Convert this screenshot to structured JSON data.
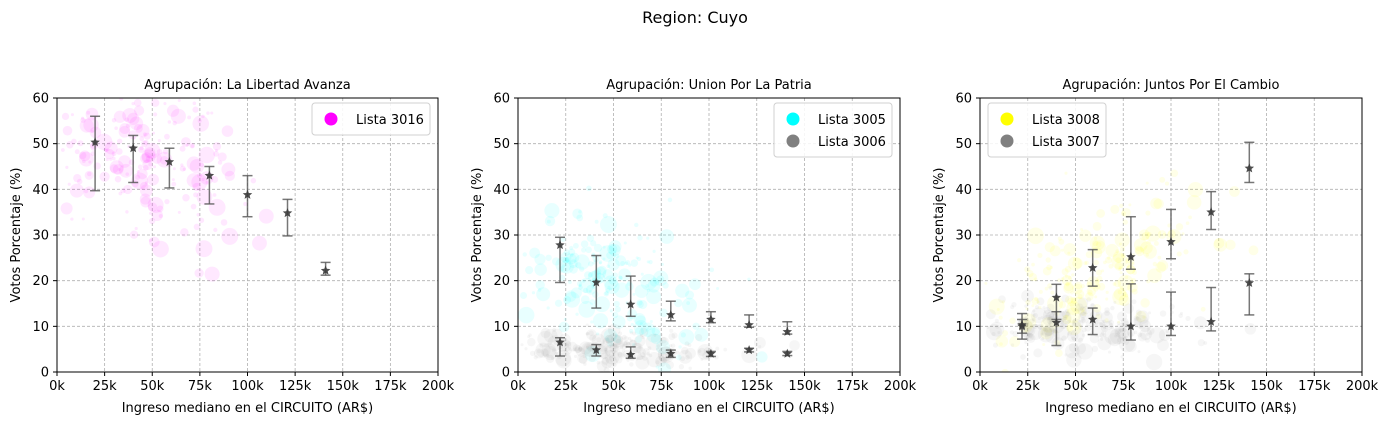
{
  "figure": {
    "suptitle": "Region: Cuyo"
  },
  "chart_data": [
    {
      "type": "scatter",
      "title": "Agrupación: La Libertad Avanza",
      "xlabel": "Ingreso mediano en el CIRCUITO (AR$)",
      "ylabel": "Votos Porcentaje (%)",
      "xlim": [
        0,
        200000
      ],
      "ylim": [
        0,
        60
      ],
      "x_ticks": [
        0,
        25000,
        50000,
        75000,
        100000,
        125000,
        150000,
        175000,
        200000
      ],
      "x_tick_labels": [
        "0k",
        "25k",
        "50k",
        "75k",
        "100k",
        "125k",
        "150k",
        "175k",
        "200k"
      ],
      "y_ticks": [
        0,
        10,
        20,
        30,
        40,
        50,
        60
      ],
      "y_tick_labels": [
        "0",
        "10",
        "20",
        "30",
        "40",
        "50",
        "60"
      ],
      "grid": true,
      "legend_position": "top-right",
      "series": [
        {
          "name": "Lista 3016",
          "color": "#ff00ff",
          "scatter_cloud": {
            "x_center": 45000,
            "y_center": 46,
            "x_spread": 25000,
            "y_spread": 8,
            "slope": -8e-05
          },
          "binned": [
            {
              "x": 20000,
              "y": 50.3,
              "low": 39.7,
              "high": 56.0
            },
            {
              "x": 40000,
              "y": 49.0,
              "low": 41.5,
              "high": 51.8
            },
            {
              "x": 59000,
              "y": 46.0,
              "low": 40.3,
              "high": 49.0
            },
            {
              "x": 80000,
              "y": 43.0,
              "low": 36.8,
              "high": 45.0
            },
            {
              "x": 100000,
              "y": 38.8,
              "low": 34.0,
              "high": 43.0
            },
            {
              "x": 121000,
              "y": 34.8,
              "low": 29.8,
              "high": 37.8
            },
            {
              "x": 141000,
              "y": 22.2,
              "low": 21.2,
              "high": 24.0
            }
          ]
        }
      ]
    },
    {
      "type": "scatter",
      "title": "Agrupación: Union Por La Patria",
      "xlabel": "Ingreso mediano en el CIRCUITO (AR$)",
      "ylabel": "Votos Porcentaje (%)",
      "xlim": [
        0,
        200000
      ],
      "ylim": [
        0,
        60
      ],
      "x_ticks": [
        0,
        25000,
        50000,
        75000,
        100000,
        125000,
        150000,
        175000,
        200000
      ],
      "x_tick_labels": [
        "0k",
        "25k",
        "50k",
        "75k",
        "100k",
        "125k",
        "150k",
        "175k",
        "200k"
      ],
      "y_ticks": [
        0,
        10,
        20,
        30,
        40,
        50,
        60
      ],
      "y_tick_labels": [
        "0",
        "10",
        "20",
        "30",
        "40",
        "50",
        "60"
      ],
      "grid": true,
      "legend_position": "top-right",
      "series": [
        {
          "name": "Lista 3005",
          "color": "#00ffff",
          "scatter_cloud": {
            "x_center": 45000,
            "y_center": 20,
            "x_spread": 25000,
            "y_spread": 7,
            "slope": -0.00015
          },
          "binned": [
            {
              "x": 22000,
              "y": 27.8,
              "low": 19.6,
              "high": 29.5
            },
            {
              "x": 41000,
              "y": 19.6,
              "low": 14.0,
              "high": 25.5
            },
            {
              "x": 59000,
              "y": 14.8,
              "low": 12.2,
              "high": 21.0
            },
            {
              "x": 80000,
              "y": 12.5,
              "low": 11.2,
              "high": 15.5
            },
            {
              "x": 101000,
              "y": 11.5,
              "low": 10.8,
              "high": 13.2
            },
            {
              "x": 121000,
              "y": 10.3,
              "low": 9.8,
              "high": 12.5
            },
            {
              "x": 141000,
              "y": 8.8,
              "low": 8.3,
              "high": 11.0
            }
          ]
        },
        {
          "name": "Lista 3006",
          "color": "#808080",
          "scatter_cloud": {
            "x_center": 50000,
            "y_center": 5,
            "x_spread": 28000,
            "y_spread": 2,
            "slope": 0
          },
          "binned": [
            {
              "x": 22000,
              "y": 6.5,
              "low": 3.5,
              "high": 7.5
            },
            {
              "x": 41000,
              "y": 4.8,
              "low": 3.5,
              "high": 6.0
            },
            {
              "x": 59000,
              "y": 3.8,
              "low": 3.0,
              "high": 5.5
            },
            {
              "x": 80000,
              "y": 4.0,
              "low": 3.2,
              "high": 4.8
            },
            {
              "x": 101000,
              "y": 4.0,
              "low": 3.4,
              "high": 4.5
            },
            {
              "x": 121000,
              "y": 4.8,
              "low": 4.4,
              "high": 5.2
            },
            {
              "x": 141000,
              "y": 4.0,
              "low": 3.6,
              "high": 4.5
            }
          ]
        }
      ]
    },
    {
      "type": "scatter",
      "title": "Agrupación: Juntos Por El Cambio",
      "xlabel": "Ingreso mediano en el CIRCUITO (AR$)",
      "ylabel": "Votos Porcentaje (%)",
      "xlim": [
        0,
        200000
      ],
      "ylim": [
        0,
        60
      ],
      "x_ticks": [
        0,
        25000,
        50000,
        75000,
        100000,
        125000,
        150000,
        175000,
        200000
      ],
      "x_tick_labels": [
        "0k",
        "25k",
        "50k",
        "75k",
        "100k",
        "125k",
        "150k",
        "175k",
        "200k"
      ],
      "y_ticks": [
        0,
        10,
        20,
        30,
        40,
        50,
        60
      ],
      "y_tick_labels": [
        "0",
        "10",
        "20",
        "30",
        "40",
        "50",
        "60"
      ],
      "grid": true,
      "legend_position": "top-left",
      "series": [
        {
          "name": "Lista 3008",
          "color": "#ffff00",
          "scatter_cloud": {
            "x_center": 60000,
            "y_center": 22,
            "x_spread": 28000,
            "y_spread": 7,
            "slope": 0.00018
          },
          "binned": [
            {
              "x": 22000,
              "y": 10.0,
              "low": 8.5,
              "high": 12.8
            },
            {
              "x": 40000,
              "y": 16.3,
              "low": 11.5,
              "high": 19.2
            },
            {
              "x": 59000,
              "y": 22.8,
              "low": 18.8,
              "high": 26.8
            },
            {
              "x": 79000,
              "y": 25.2,
              "low": 22.5,
              "high": 34.0
            },
            {
              "x": 100000,
              "y": 28.5,
              "low": 24.8,
              "high": 35.6
            },
            {
              "x": 121000,
              "y": 35.0,
              "low": 31.2,
              "high": 39.5
            },
            {
              "x": 141000,
              "y": 44.6,
              "low": 41.5,
              "high": 50.3
            }
          ]
        },
        {
          "name": "Lista 3007",
          "color": "#808080",
          "scatter_cloud": {
            "x_center": 50000,
            "y_center": 10,
            "x_spread": 28000,
            "y_spread": 3,
            "slope": 0
          },
          "binned": [
            {
              "x": 22000,
              "y": 10.3,
              "low": 7.2,
              "high": 11.5
            },
            {
              "x": 40000,
              "y": 10.8,
              "low": 5.8,
              "high": 13.2
            },
            {
              "x": 59000,
              "y": 11.5,
              "low": 8.2,
              "high": 14.0
            },
            {
              "x": 79000,
              "y": 10.0,
              "low": 7.0,
              "high": 19.3
            },
            {
              "x": 100000,
              "y": 10.0,
              "low": 8.0,
              "high": 17.5
            },
            {
              "x": 121000,
              "y": 11.0,
              "low": 9.0,
              "high": 18.5
            },
            {
              "x": 141000,
              "y": 19.5,
              "low": 12.5,
              "high": 21.5
            }
          ]
        }
      ]
    }
  ]
}
